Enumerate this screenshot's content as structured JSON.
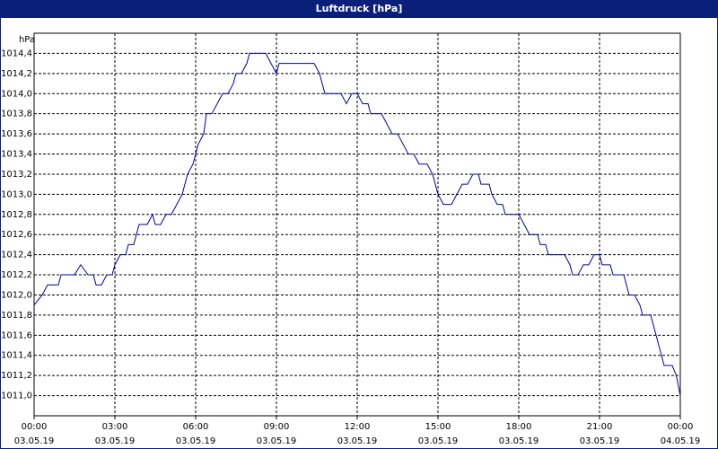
{
  "chart_data": {
    "type": "line",
    "title": "Luftdruck [hPa]",
    "y_unit": "hPa",
    "xlim": [
      0,
      24
    ],
    "ylim": [
      1010.8,
      1014.6
    ],
    "grid": true,
    "xticks": [
      {
        "value": 0,
        "label": "00:00\n03.05.19"
      },
      {
        "value": 3,
        "label": "03:00\n03.05.19"
      },
      {
        "value": 6,
        "label": "06:00\n03.05.19"
      },
      {
        "value": 9,
        "label": "09:00\n03.05.19"
      },
      {
        "value": 12,
        "label": "12:00\n03.05.19"
      },
      {
        "value": 15,
        "label": "15:00\n03.05.19"
      },
      {
        "value": 18,
        "label": "18:00\n03.05.19"
      },
      {
        "value": 21,
        "label": "21:00\n03.05.19"
      },
      {
        "value": 24,
        "label": "00:00\n04.05.19"
      }
    ],
    "yticks": [
      {
        "value": 1011.0,
        "label": "1011,0"
      },
      {
        "value": 1011.2,
        "label": "1011,2"
      },
      {
        "value": 1011.4,
        "label": "1011,4"
      },
      {
        "value": 1011.6,
        "label": "1011,6"
      },
      {
        "value": 1011.8,
        "label": "1011,8"
      },
      {
        "value": 1012.0,
        "label": "1012,0"
      },
      {
        "value": 1012.2,
        "label": "1012,2"
      },
      {
        "value": 1012.4,
        "label": "1012,4"
      },
      {
        "value": 1012.6,
        "label": "1012,6"
      },
      {
        "value": 1012.8,
        "label": "1012,8"
      },
      {
        "value": 1013.0,
        "label": "1013,0"
      },
      {
        "value": 1013.2,
        "label": "1013,2"
      },
      {
        "value": 1013.4,
        "label": "1013,4"
      },
      {
        "value": 1013.6,
        "label": "1013,6"
      },
      {
        "value": 1013.8,
        "label": "1013,8"
      },
      {
        "value": 1014.0,
        "label": "1014,0"
      },
      {
        "value": 1014.2,
        "label": "1014,2"
      },
      {
        "value": 1014.4,
        "label": "1014,4"
      }
    ],
    "x": [
      0,
      0.3,
      0.5,
      0.9,
      1.0,
      1.5,
      1.73,
      2.0,
      2.2,
      2.3,
      2.5,
      2.7,
      2.9,
      3.0,
      3.2,
      3.4,
      3.5,
      3.7,
      3.8,
      3.9,
      4.2,
      4.4,
      4.5,
      4.7,
      4.9,
      5.1,
      5.3,
      5.5,
      5.7,
      5.9,
      6.1,
      6.3,
      6.4,
      6.6,
      6.8,
      7.0,
      7.2,
      7.4,
      7.5,
      7.7,
      7.9,
      8.0,
      8.6,
      8.8,
      9.0,
      9.1,
      10.4,
      10.6,
      10.8,
      11.4,
      11.6,
      11.8,
      12.0,
      12.2,
      12.4,
      12.5,
      12.9,
      13.1,
      13.3,
      13.5,
      13.7,
      13.9,
      14.1,
      14.3,
      14.6,
      14.8,
      15.0,
      15.2,
      15.5,
      15.7,
      15.9,
      16.1,
      16.3,
      16.5,
      16.6,
      16.9,
      17.0,
      17.2,
      17.4,
      17.5,
      18.0,
      18.2,
      18.4,
      18.7,
      18.8,
      19.0,
      19.1,
      19.7,
      19.9,
      20.0,
      20.2,
      20.4,
      20.6,
      20.8,
      21.0,
      21.1,
      21.4,
      21.5,
      21.9,
      22.1,
      22.3,
      22.5,
      22.6,
      22.9,
      23.0,
      23.2,
      23.3,
      23.4,
      23.7,
      23.85,
      24.0
    ],
    "series": [
      {
        "color": "#0000a0",
        "values": [
          1011.9,
          1012.0,
          1012.1,
          1012.1,
          1012.2,
          1012.2,
          1012.3,
          1012.2,
          1012.2,
          1012.1,
          1012.1,
          1012.2,
          1012.2,
          1012.3,
          1012.4,
          1012.4,
          1012.5,
          1012.5,
          1012.6,
          1012.7,
          1012.7,
          1012.8,
          1012.7,
          1012.7,
          1012.8,
          1012.8,
          1012.9,
          1013.0,
          1013.2,
          1013.3,
          1013.5,
          1013.6,
          1013.8,
          1013.8,
          1013.9,
          1014.0,
          1014.0,
          1014.1,
          1014.2,
          1014.2,
          1014.3,
          1014.4,
          1014.4,
          1014.3,
          1014.2,
          1014.3,
          1014.3,
          1014.2,
          1014.0,
          1014.0,
          1013.9,
          1014.0,
          1014.0,
          1013.9,
          1013.9,
          1013.8,
          1013.8,
          1013.7,
          1013.6,
          1013.6,
          1013.5,
          1013.4,
          1013.4,
          1013.3,
          1013.3,
          1013.2,
          1013.0,
          1012.9,
          1012.9,
          1013.0,
          1013.1,
          1013.1,
          1013.2,
          1013.2,
          1013.1,
          1013.1,
          1013.0,
          1012.9,
          1012.9,
          1012.8,
          1012.8,
          1012.7,
          1012.6,
          1012.6,
          1012.5,
          1012.5,
          1012.4,
          1012.4,
          1012.3,
          1012.2,
          1012.2,
          1012.3,
          1012.3,
          1012.4,
          1012.4,
          1012.3,
          1012.3,
          1012.2,
          1012.2,
          1012.0,
          1012.0,
          1011.9,
          1011.8,
          1011.8,
          1011.7,
          1011.5,
          1011.4,
          1011.3,
          1011.3,
          1011.2,
          1011.0
        ]
      }
    ]
  }
}
